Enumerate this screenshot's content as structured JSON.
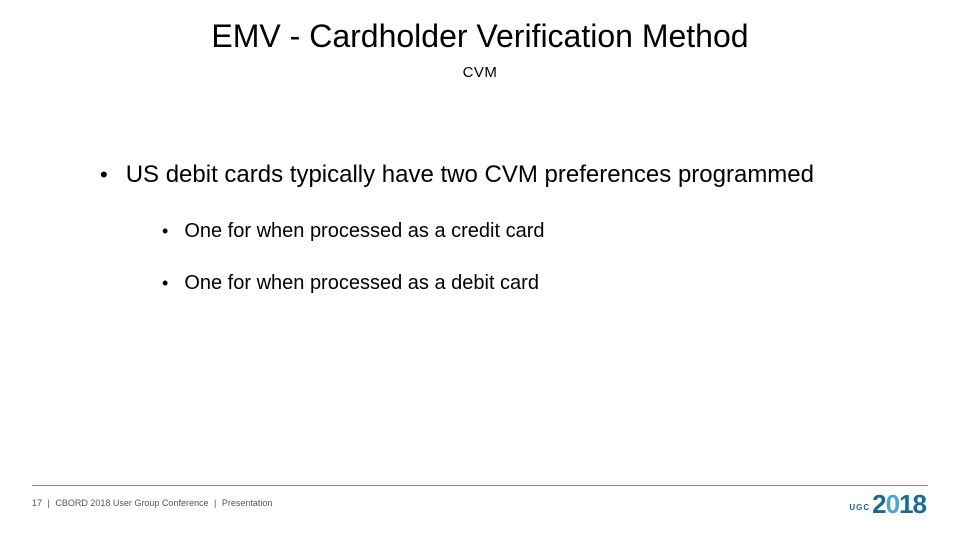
{
  "title": "EMV - Cardholder Verification Method",
  "subtitle": "CVM",
  "bullets": {
    "main": "US debit cards typically have two CVM preferences programmed",
    "sub1": "One for when processed as a credit card",
    "sub2": "One for when processed as a debit card"
  },
  "footer": {
    "page": "17",
    "conf": "CBORD 2018 User Group Conference",
    "pres": "Presentation"
  },
  "logo": {
    "ugc": "UGC",
    "year_a": "2",
    "year_b": "0",
    "year_c": "18"
  },
  "colors": {
    "text": "#000000",
    "footer_text": "#555555",
    "line": "#888888",
    "logo_primary": "#1a6b8c",
    "logo_accent": "#4aa8c9",
    "background": "#ffffff"
  }
}
